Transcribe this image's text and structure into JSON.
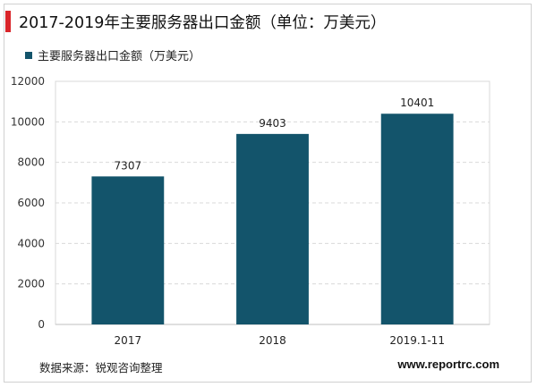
{
  "header": {
    "title": "2017-2019年主要服务器出口金额（单位：万美元）",
    "accent_color": "#d9252a"
  },
  "footer": {
    "source": "数据来源：锐观咨询整理",
    "website": "www.reportrc.com"
  },
  "chart_data": {
    "type": "bar",
    "categories": [
      "2017",
      "2018",
      "2019.1-11"
    ],
    "series": [
      {
        "name": "主要服务器出口金额（万美元）",
        "values": [
          7307,
          9403,
          10401
        ],
        "color": "#13546b"
      }
    ],
    "ylim": [
      0,
      12000
    ],
    "yticks": [
      0,
      2000,
      4000,
      6000,
      8000,
      10000,
      12000
    ],
    "grid": true,
    "legend_position": "top-left",
    "data_labels": true
  }
}
